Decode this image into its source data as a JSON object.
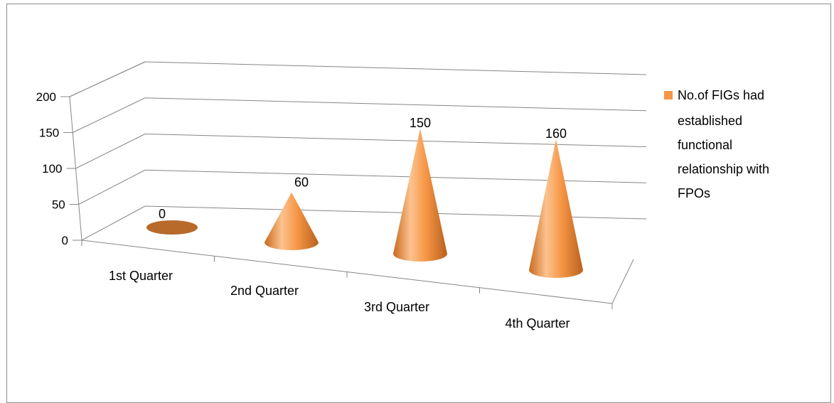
{
  "chart_data": {
    "type": "bar",
    "bar_shape": "cone",
    "three_d": true,
    "categories": [
      "1st Quarter",
      "2nd Quarter",
      "3rd Quarter",
      "4th Quarter"
    ],
    "series": [
      {
        "name": "No.of FIGs had established functional relationship with FPOs",
        "values": [
          0,
          60,
          150,
          160
        ]
      }
    ],
    "data_labels": [
      "0",
      "60",
      "150",
      "160"
    ],
    "y_ticks": [
      "0",
      "50",
      "100",
      "150",
      "200"
    ],
    "ylim": [
      0,
      200
    ],
    "grid": true,
    "legend_position": "right",
    "legend_lines": [
      "No.of FIGs had",
      "established",
      "functional",
      "relationship with",
      "FPOs"
    ],
    "colors": {
      "series": "#f79646",
      "series_dark": "#b86a2a",
      "axis": "#868686"
    }
  }
}
